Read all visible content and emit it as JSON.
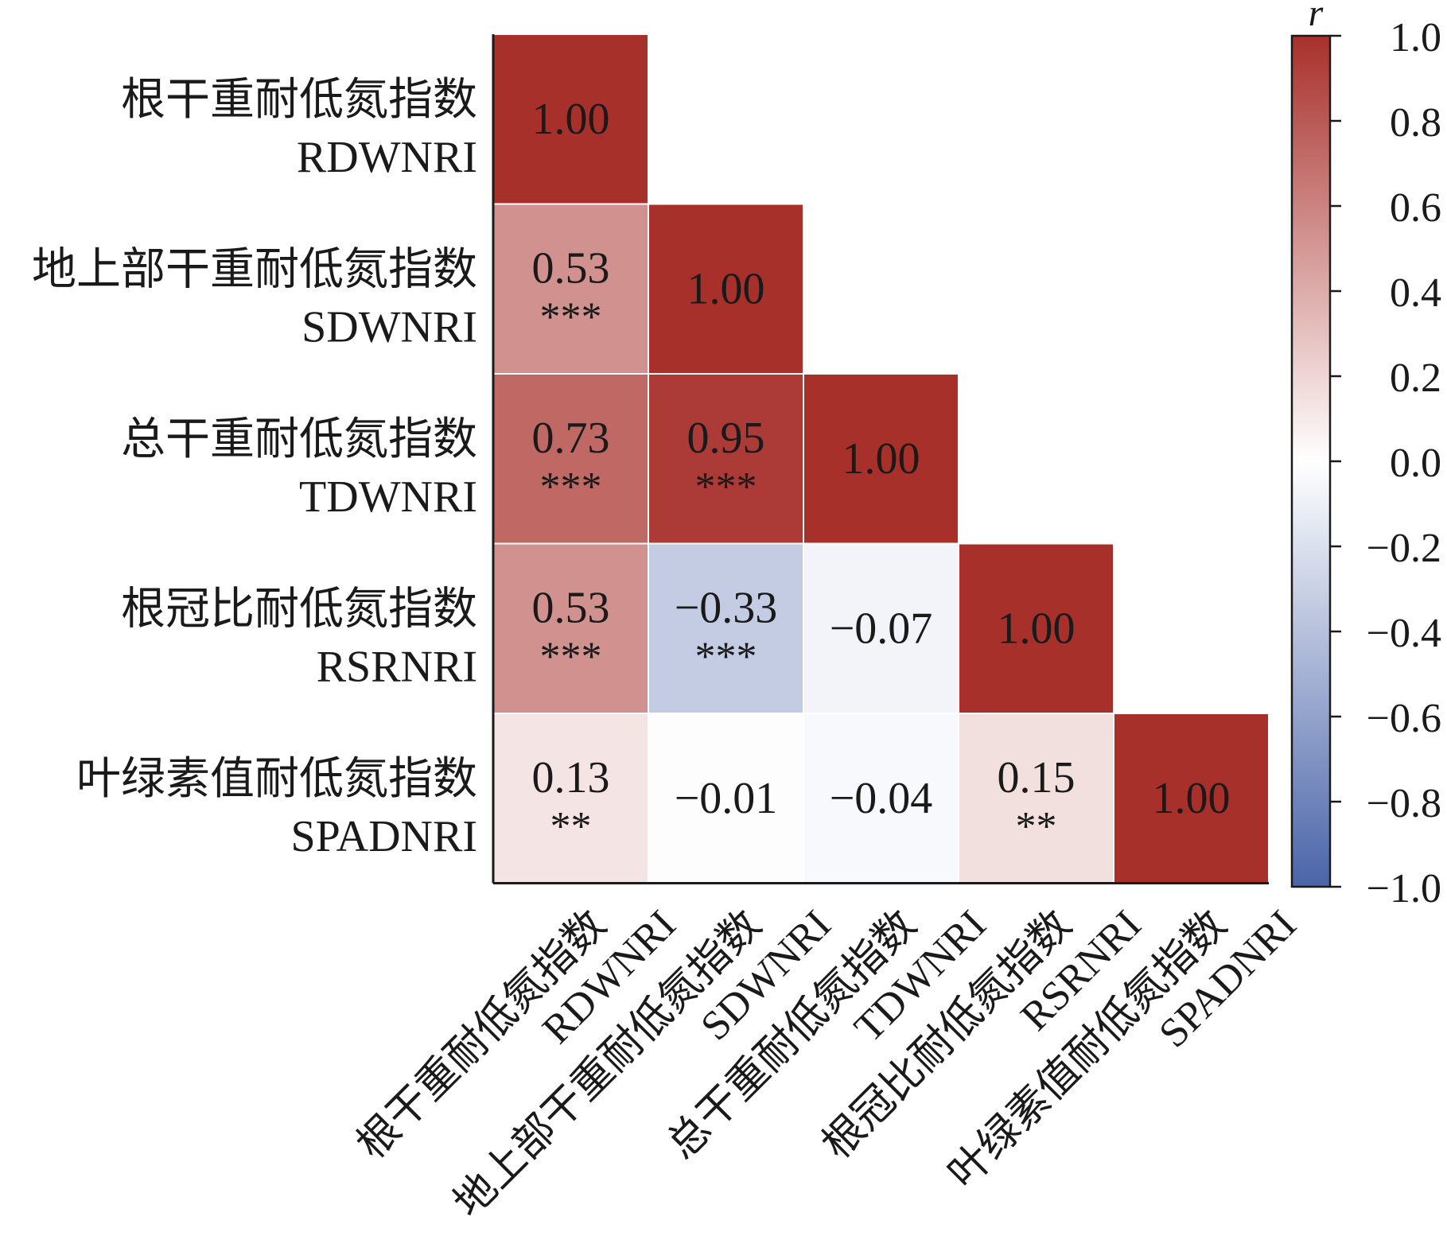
{
  "chart_data": {
    "type": "heatmap",
    "variables": [
      {
        "zh": "根干重耐低氮指数",
        "en": "RDWNRI"
      },
      {
        "zh": "地上部干重耐低氮指数",
        "en": "SDWNRI"
      },
      {
        "zh": "总干重耐低氮指数",
        "en": "TDWNRI"
      },
      {
        "zh": "根冠比耐低氮指数",
        "en": "RSRNRI"
      },
      {
        "zh": "叶绿素值耐低氮指数",
        "en": "SPADNRI"
      }
    ],
    "cells": [
      {
        "row": 0,
        "col": 0,
        "value": 1.0,
        "label": "1.00",
        "sig": ""
      },
      {
        "row": 1,
        "col": 0,
        "value": 0.53,
        "label": "0.53",
        "sig": "***"
      },
      {
        "row": 1,
        "col": 1,
        "value": 1.0,
        "label": "1.00",
        "sig": ""
      },
      {
        "row": 2,
        "col": 0,
        "value": 0.73,
        "label": "0.73",
        "sig": "***"
      },
      {
        "row": 2,
        "col": 1,
        "value": 0.95,
        "label": "0.95",
        "sig": "***"
      },
      {
        "row": 2,
        "col": 2,
        "value": 1.0,
        "label": "1.00",
        "sig": ""
      },
      {
        "row": 3,
        "col": 0,
        "value": 0.53,
        "label": "0.53",
        "sig": "***"
      },
      {
        "row": 3,
        "col": 1,
        "value": -0.33,
        "label": "−0.33",
        "sig": "***"
      },
      {
        "row": 3,
        "col": 2,
        "value": -0.07,
        "label": "−0.07",
        "sig": ""
      },
      {
        "row": 3,
        "col": 3,
        "value": 1.0,
        "label": "1.00",
        "sig": ""
      },
      {
        "row": 4,
        "col": 0,
        "value": 0.13,
        "label": "0.13",
        "sig": "**"
      },
      {
        "row": 4,
        "col": 1,
        "value": -0.01,
        "label": "−0.01",
        "sig": ""
      },
      {
        "row": 4,
        "col": 2,
        "value": -0.04,
        "label": "−0.04",
        "sig": ""
      },
      {
        "row": 4,
        "col": 3,
        "value": 0.15,
        "label": "0.15",
        "sig": "**"
      },
      {
        "row": 4,
        "col": 4,
        "value": 1.0,
        "label": "1.00",
        "sig": ""
      }
    ],
    "colorbar": {
      "title": "r",
      "range": [
        -1.0,
        1.0
      ],
      "ticks": [
        {
          "value": 1.0,
          "label": "1.0"
        },
        {
          "value": 0.8,
          "label": "0.8"
        },
        {
          "value": 0.6,
          "label": "0.6"
        },
        {
          "value": 0.4,
          "label": "0.4"
        },
        {
          "value": 0.2,
          "label": "0.2"
        },
        {
          "value": 0.0,
          "label": "0.0"
        },
        {
          "value": -0.2,
          "label": "−0.2"
        },
        {
          "value": -0.4,
          "label": "−0.4"
        },
        {
          "value": -0.6,
          "label": "−0.6"
        },
        {
          "value": -0.8,
          "label": "−0.8"
        },
        {
          "value": -1.0,
          "label": "−1.0"
        }
      ],
      "colors": {
        "negative": "#4a64a8",
        "zero": "#ffffff",
        "positive": "#a8302b"
      }
    }
  }
}
